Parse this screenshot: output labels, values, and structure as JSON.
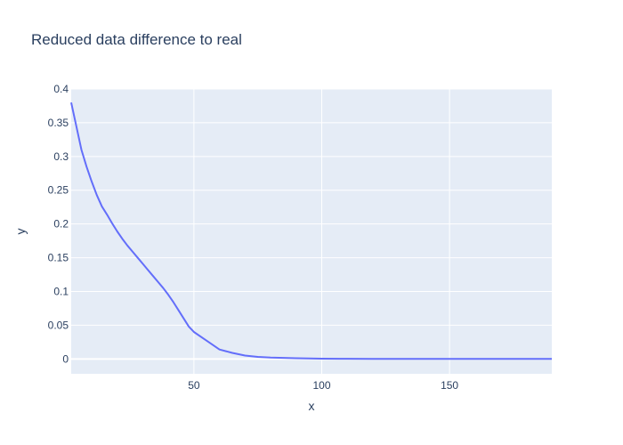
{
  "chart_data": {
    "type": "line",
    "title": "Reduced data difference to real",
    "xlabel": "x",
    "ylabel": "y",
    "xlim": [
      2,
      190
    ],
    "ylim": [
      -0.022,
      0.4
    ],
    "x_ticks": [
      50,
      100,
      150
    ],
    "x_tick_labels": [
      "50",
      "100",
      "150"
    ],
    "y_ticks": [
      0,
      0.05,
      0.1,
      0.15,
      0.2,
      0.25,
      0.3,
      0.35,
      0.4
    ],
    "y_tick_labels": [
      "0",
      "0.05",
      "0.1",
      "0.15",
      "0.2",
      "0.25",
      "0.3",
      "0.35",
      "0.4"
    ],
    "grid": true,
    "background_color": "#e5ecf6",
    "line_color": "#636efa",
    "series": [
      {
        "x": [
          2,
          4,
          6,
          8,
          10,
          12,
          14,
          16,
          18,
          20,
          22,
          24,
          26,
          28,
          30,
          32,
          34,
          36,
          38,
          40,
          42,
          44,
          46,
          48,
          50,
          55,
          60,
          65,
          70,
          75,
          80,
          90,
          100,
          110,
          120,
          130,
          140,
          150,
          160,
          170,
          180,
          190
        ],
        "values": [
          0.38,
          0.345,
          0.31,
          0.285,
          0.263,
          0.243,
          0.226,
          0.214,
          0.201,
          0.189,
          0.178,
          0.168,
          0.159,
          0.15,
          0.141,
          0.132,
          0.123,
          0.114,
          0.105,
          0.095,
          0.084,
          0.072,
          0.06,
          0.048,
          0.04,
          0.027,
          0.014,
          0.009,
          0.005,
          0.003,
          0.002,
          0.001,
          0.0005,
          0.0002,
          0.0001,
          0.0001,
          0.0001,
          0.0001,
          0.0001,
          0.0001,
          0.0001,
          0.0001
        ]
      }
    ]
  }
}
